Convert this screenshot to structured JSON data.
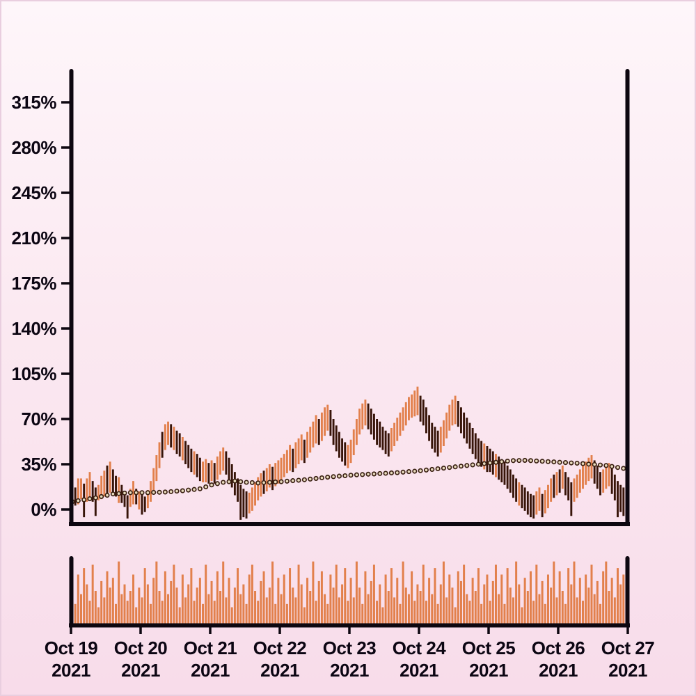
{
  "colors": {
    "background_top": "#fef6fa",
    "background_bottom": "#f8dcea",
    "frame_border": "#e9cedf",
    "axis": "#0d0710",
    "text": "#0c0613",
    "bar_up": "#e2804c",
    "bar_down": "#371408",
    "volume_bar": "#e2804c",
    "ma_dot_stroke": "#3a2012",
    "ma_dot_fill": "#e9dcbe"
  },
  "y_axis": {
    "unit": "%",
    "ticks": [
      {
        "label": "315%",
        "value": 315
      },
      {
        "label": "280%",
        "value": 280
      },
      {
        "label": "245%",
        "value": 245
      },
      {
        "label": "210%",
        "value": 210
      },
      {
        "label": "175%",
        "value": 175
      },
      {
        "label": "140%",
        "value": 140
      },
      {
        "label": "105%",
        "value": 105
      },
      {
        "label": "70%",
        "value": 70
      },
      {
        "label": "35%",
        "value": 35
      },
      {
        "label": "0%",
        "value": 0
      }
    ]
  },
  "x_axis": {
    "labels": [
      {
        "line1": "Oct 19",
        "line2": "2021",
        "day": 0
      },
      {
        "line1": "Oct 20",
        "line2": "2021",
        "day": 1
      },
      {
        "line1": "Oct 21",
        "line2": "2021",
        "day": 2
      },
      {
        "line1": "Oct 22",
        "line2": "2021",
        "day": 3
      },
      {
        "line1": "Oct 23",
        "line2": "2021",
        "day": 4
      },
      {
        "line1": "Oct 24",
        "line2": "2021",
        "day": 5
      },
      {
        "line1": "Oct 25",
        "line2": "2021",
        "day": 6
      },
      {
        "line1": "Oct 26",
        "line2": "2021",
        "day": 7
      },
      {
        "line1": "Oct 27",
        "line2": "2021",
        "day": 8
      }
    ]
  },
  "chart_data": {
    "type": "hilo-bars-with-ma-and-volume",
    "title": "",
    "xlabel": "",
    "ylabel": "",
    "x_range": [
      "Oct 19 2021",
      "Oct 27 2021"
    ],
    "bars_per_day": 24,
    "ylim_main_pct": [
      -12,
      341
    ],
    "grid": false,
    "legend": false,
    "bars_note": "each bar = [high_pct, low_pct, color 1=orange-up 0=dark-down], hourly",
    "bars": [
      [
        21,
        3,
        1
      ],
      [
        17,
        3,
        0
      ],
      [
        24,
        4,
        1
      ],
      [
        24,
        8,
        1
      ],
      [
        20,
        -6,
        0
      ],
      [
        24,
        6,
        1
      ],
      [
        29,
        7,
        1
      ],
      [
        22,
        6,
        0
      ],
      [
        17,
        -5,
        0
      ],
      [
        19,
        7,
        1
      ],
      [
        26,
        8,
        1
      ],
      [
        30,
        10,
        1
      ],
      [
        34,
        12,
        0
      ],
      [
        37,
        13,
        1
      ],
      [
        31,
        13,
        0
      ],
      [
        26,
        10,
        0
      ],
      [
        25,
        5,
        1
      ],
      [
        19,
        5,
        0
      ],
      [
        14,
        2,
        0
      ],
      [
        11,
        -7,
        0
      ],
      [
        16,
        2,
        1
      ],
      [
        22,
        4,
        1
      ],
      [
        16,
        4,
        0
      ],
      [
        14,
        0,
        1
      ],
      [
        12,
        -4,
        0
      ],
      [
        10,
        -2,
        0
      ],
      [
        15,
        1,
        1
      ],
      [
        22,
        6,
        1
      ],
      [
        32,
        12,
        1
      ],
      [
        42,
        22,
        1
      ],
      [
        52,
        32,
        1
      ],
      [
        60,
        40,
        0
      ],
      [
        66,
        46,
        1
      ],
      [
        68,
        50,
        1
      ],
      [
        66,
        48,
        0
      ],
      [
        64,
        46,
        1
      ],
      [
        61,
        43,
        0
      ],
      [
        59,
        41,
        0
      ],
      [
        56,
        38,
        1
      ],
      [
        53,
        35,
        0
      ],
      [
        50,
        32,
        0
      ],
      [
        47,
        29,
        0
      ],
      [
        45,
        27,
        1
      ],
      [
        43,
        25,
        0
      ],
      [
        40,
        22,
        0
      ],
      [
        37,
        21,
        1
      ],
      [
        39,
        21,
        1
      ],
      [
        36,
        20,
        0
      ],
      [
        38,
        22,
        1
      ],
      [
        36,
        20,
        0
      ],
      [
        41,
        23,
        1
      ],
      [
        45,
        27,
        1
      ],
      [
        48,
        30,
        1
      ],
      [
        45,
        27,
        0
      ],
      [
        40,
        22,
        0
      ],
      [
        35,
        17,
        0
      ],
      [
        29,
        11,
        0
      ],
      [
        24,
        6,
        0
      ],
      [
        19,
        -8,
        0
      ],
      [
        16,
        -6,
        0
      ],
      [
        14,
        -7,
        0
      ],
      [
        13,
        -3,
        1
      ],
      [
        17,
        -1,
        1
      ],
      [
        21,
        3,
        1
      ],
      [
        25,
        7,
        1
      ],
      [
        28,
        10,
        1
      ],
      [
        30,
        12,
        0
      ],
      [
        32,
        14,
        1
      ],
      [
        35,
        17,
        1
      ],
      [
        33,
        15,
        0
      ],
      [
        36,
        18,
        1
      ],
      [
        38,
        20,
        1
      ],
      [
        40,
        22,
        1
      ],
      [
        43,
        25,
        1
      ],
      [
        46,
        28,
        1
      ],
      [
        50,
        30,
        1
      ],
      [
        47,
        29,
        0
      ],
      [
        52,
        32,
        1
      ],
      [
        55,
        35,
        1
      ],
      [
        58,
        38,
        1
      ],
      [
        54,
        36,
        0
      ],
      [
        60,
        40,
        1
      ],
      [
        64,
        44,
        1
      ],
      [
        68,
        48,
        1
      ],
      [
        73,
        51,
        1
      ],
      [
        70,
        50,
        0
      ],
      [
        75,
        53,
        1
      ],
      [
        79,
        57,
        1
      ],
      [
        81,
        61,
        1
      ],
      [
        77,
        57,
        0
      ],
      [
        70,
        50,
        0
      ],
      [
        65,
        45,
        0
      ],
      [
        60,
        40,
        0
      ],
      [
        55,
        37,
        0
      ],
      [
        52,
        34,
        0
      ],
      [
        50,
        32,
        1
      ],
      [
        54,
        36,
        1
      ],
      [
        62,
        42,
        1
      ],
      [
        70,
        50,
        1
      ],
      [
        78,
        58,
        1
      ],
      [
        82,
        62,
        1
      ],
      [
        85,
        65,
        1
      ],
      [
        82,
        62,
        0
      ],
      [
        78,
        58,
        0
      ],
      [
        74,
        54,
        0
      ],
      [
        70,
        50,
        0
      ],
      [
        68,
        48,
        0
      ],
      [
        64,
        46,
        0
      ],
      [
        61,
        43,
        0
      ],
      [
        59,
        41,
        0
      ],
      [
        63,
        45,
        1
      ],
      [
        67,
        49,
        1
      ],
      [
        71,
        53,
        1
      ],
      [
        75,
        57,
        1
      ],
      [
        79,
        61,
        1
      ],
      [
        83,
        65,
        1
      ],
      [
        87,
        69,
        1
      ],
      [
        89,
        71,
        1
      ],
      [
        92,
        72,
        1
      ],
      [
        95,
        73,
        1
      ],
      [
        88,
        68,
        0
      ],
      [
        85,
        65,
        0
      ],
      [
        79,
        59,
        0
      ],
      [
        73,
        53,
        0
      ],
      [
        67,
        47,
        0
      ],
      [
        64,
        44,
        0
      ],
      [
        61,
        41,
        0
      ],
      [
        64,
        44,
        1
      ],
      [
        69,
        49,
        1
      ],
      [
        75,
        55,
        1
      ],
      [
        81,
        61,
        1
      ],
      [
        85,
        65,
        1
      ],
      [
        88,
        66,
        1
      ],
      [
        84,
        64,
        0
      ],
      [
        79,
        59,
        0
      ],
      [
        75,
        55,
        0
      ],
      [
        71,
        51,
        0
      ],
      [
        67,
        47,
        0
      ],
      [
        63,
        43,
        0
      ],
      [
        59,
        39,
        0
      ],
      [
        55,
        35,
        0
      ],
      [
        53,
        33,
        0
      ],
      [
        51,
        31,
        1
      ],
      [
        49,
        29,
        0
      ],
      [
        47,
        29,
        0
      ],
      [
        45,
        27,
        0
      ],
      [
        43,
        25,
        1
      ],
      [
        41,
        23,
        0
      ],
      [
        39,
        21,
        0
      ],
      [
        37,
        19,
        0
      ],
      [
        34,
        16,
        0
      ],
      [
        31,
        13,
        0
      ],
      [
        27,
        9,
        0
      ],
      [
        24,
        6,
        0
      ],
      [
        21,
        3,
        1
      ],
      [
        19,
        1,
        0
      ],
      [
        17,
        -1,
        0
      ],
      [
        14,
        -4,
        0
      ],
      [
        12,
        -6,
        0
      ],
      [
        11,
        -7,
        0
      ],
      [
        14,
        -4,
        1
      ],
      [
        17,
        -1,
        1
      ],
      [
        12,
        -6,
        0
      ],
      [
        15,
        -3,
        1
      ],
      [
        19,
        1,
        1
      ],
      [
        24,
        6,
        1
      ],
      [
        27,
        9,
        0
      ],
      [
        29,
        11,
        1
      ],
      [
        31,
        13,
        0
      ],
      [
        34,
        16,
        1
      ],
      [
        29,
        11,
        0
      ],
      [
        25,
        7,
        0
      ],
      [
        21,
        -5,
        0
      ],
      [
        24,
        6,
        1
      ],
      [
        27,
        9,
        1
      ],
      [
        31,
        13,
        1
      ],
      [
        34,
        16,
        1
      ],
      [
        37,
        19,
        1
      ],
      [
        40,
        22,
        1
      ],
      [
        42,
        24,
        1
      ],
      [
        38,
        20,
        0
      ],
      [
        34,
        16,
        0
      ],
      [
        29,
        11,
        0
      ],
      [
        31,
        13,
        1
      ],
      [
        34,
        16,
        1
      ],
      [
        36,
        18,
        1
      ],
      [
        32,
        12,
        0
      ],
      [
        27,
        7,
        0
      ],
      [
        22,
        -6,
        0
      ],
      [
        19,
        -2,
        0
      ],
      [
        17,
        -5,
        0
      ],
      [
        15,
        1,
        1
      ]
    ],
    "moving_average": {
      "start_index": 0,
      "step": 2,
      "values_pct": [
        6,
        6.8,
        7.5,
        8.3,
        9,
        10,
        11,
        12,
        12.3,
        12.7,
        13,
        13,
        13,
        13,
        13.2,
        13.3,
        13.5,
        13.8,
        14.2,
        14.5,
        15,
        15.5,
        16,
        17.5,
        19,
        20,
        21,
        21.5,
        22,
        21.5,
        21,
        20.8,
        20.5,
        20.8,
        21,
        21.3,
        21.5,
        21.9,
        22.3,
        22.6,
        23,
        23.5,
        24,
        24.5,
        25,
        25.4,
        25.8,
        26.1,
        26.5,
        26.8,
        27,
        27.3,
        27.5,
        27.8,
        28,
        28.3,
        28.5,
        28.9,
        29.3,
        29.6,
        30,
        30.5,
        31,
        31.5,
        32,
        32.5,
        33,
        33.5,
        34,
        34.5,
        35,
        35.5,
        36,
        36.5,
        37,
        37.4,
        37.8,
        37.9,
        38,
        37.8,
        37.5,
        37.3,
        37,
        36.8,
        36.5,
        36.3,
        36,
        35.8,
        35.5,
        35.1,
        34.8,
        34.4,
        34,
        33.3,
        32.5,
        31.8
      ]
    },
    "volume_pct_of_max": [
      55,
      30,
      75,
      45,
      85,
      60,
      35,
      90,
      50,
      25,
      65,
      40,
      80,
      55,
      70,
      30,
      95,
      45,
      60,
      35,
      50,
      75,
      25,
      55,
      40,
      85,
      60,
      30,
      70,
      95,
      50,
      35,
      80,
      45,
      65,
      90,
      55,
      25,
      75,
      40,
      60,
      85,
      35,
      55,
      70,
      30,
      90,
      45,
      65,
      35,
      80,
      50,
      95,
      40,
      70,
      25,
      55,
      85,
      45,
      60,
      30,
      75,
      90,
      50,
      35,
      65,
      80,
      40,
      55,
      95,
      30,
      70,
      45,
      75,
      30,
      85,
      55,
      40,
      90,
      60,
      25,
      70,
      50,
      95,
      35,
      65,
      80,
      45,
      30,
      75,
      55,
      90,
      40,
      60,
      85,
      35,
      70,
      40,
      95,
      55,
      30,
      80,
      45,
      65,
      90,
      35,
      60,
      25,
      75,
      50,
      85,
      40,
      70,
      30,
      95,
      55,
      45,
      80,
      35,
      60,
      50,
      90,
      35,
      70,
      45,
      85,
      30,
      60,
      95,
      40,
      75,
      55,
      25,
      80,
      65,
      90,
      45,
      35,
      70,
      50,
      85,
      30,
      60,
      75,
      35,
      65,
      90,
      45,
      75,
      30,
      85,
      55,
      40,
      95,
      60,
      25,
      70,
      50,
      80,
      35,
      90,
      45,
      65,
      30,
      75,
      55,
      95,
      40,
      80,
      50,
      30,
      85,
      60,
      95,
      40,
      70,
      35,
      75,
      55,
      90,
      45,
      65,
      30,
      80,
      95,
      50,
      70,
      40,
      85,
      60,
      75,
      98
    ]
  }
}
